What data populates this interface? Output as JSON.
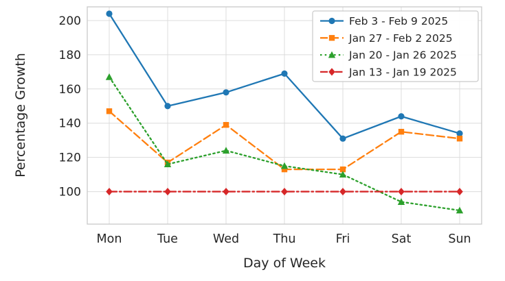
{
  "chart_data": {
    "type": "line",
    "title": "",
    "xlabel": "Day of Week",
    "ylabel": "Percentage Growth",
    "categories": [
      "Mon",
      "Tue",
      "Wed",
      "Thu",
      "Fri",
      "Sat",
      "Sun"
    ],
    "yticks": [
      100,
      120,
      140,
      160,
      180,
      200
    ],
    "ylim": [
      81,
      208
    ],
    "grid": true,
    "legend_position": "upper right",
    "series": [
      {
        "name": "Feb 3 - Feb 9 2025",
        "color": "#1f77b4",
        "linestyle": "solid",
        "marker": "circle",
        "values": [
          204,
          150,
          158,
          169,
          131,
          144,
          134
        ]
      },
      {
        "name": "Jan 27 - Feb 2 2025",
        "color": "#ff7f0e",
        "linestyle": "dashed",
        "marker": "square",
        "values": [
          147,
          117,
          139,
          113,
          113,
          135,
          131
        ]
      },
      {
        "name": "Jan 20 - Jan 26 2025",
        "color": "#2ca02c",
        "linestyle": "dotted",
        "marker": "triangle",
        "values": [
          167,
          116,
          124,
          115,
          110,
          94,
          89
        ]
      },
      {
        "name": "Jan 13 - Jan 19 2025",
        "color": "#d62728",
        "linestyle": "dashdot",
        "marker": "diamond",
        "values": [
          100,
          100,
          100,
          100,
          100,
          100,
          100
        ]
      }
    ]
  }
}
